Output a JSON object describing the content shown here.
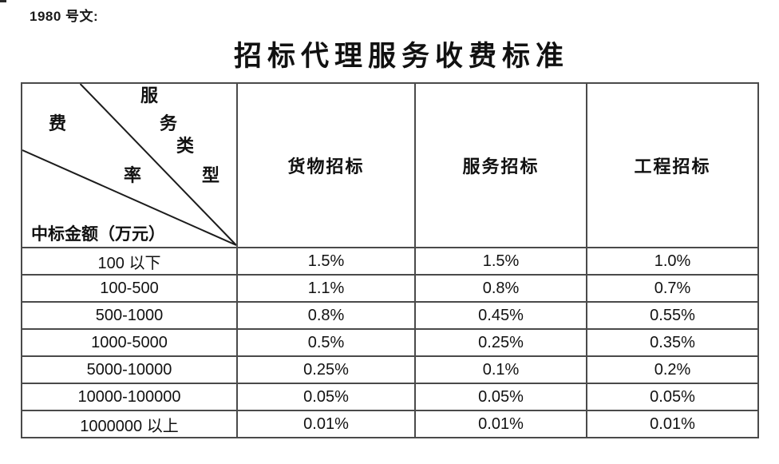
{
  "page": {
    "doc_label": "1980 号文:",
    "title": "招标代理服务收费标准"
  },
  "table": {
    "diagonal": {
      "fee_char": "费",
      "rate_char": "率",
      "service_char_1": "服",
      "service_char_2": "务",
      "service_char_3": "类",
      "service_char_4": "型",
      "bottom_label": "中标金额（万元）"
    },
    "columns": [
      "货物招标",
      "服务招标",
      "工程招标"
    ],
    "rows": [
      [
        "100 以下",
        "1.5%",
        "1.5%",
        "1.0%"
      ],
      [
        "100-500",
        "1.1%",
        "0.8%",
        "0.7%"
      ],
      [
        "500-1000",
        "0.8%",
        "0.45%",
        "0.55%"
      ],
      [
        "1000-5000",
        "0.5%",
        "0.25%",
        "0.35%"
      ],
      [
        "5000-10000",
        "0.25%",
        "0.1%",
        "0.2%"
      ],
      [
        "10000-100000",
        "0.05%",
        "0.05%",
        "0.05%"
      ],
      [
        "1000000 以上",
        "0.01%",
        "0.01%",
        "0.01%"
      ]
    ],
    "colors": {
      "border": "#4a4a4a",
      "text": "#111111",
      "background": "#ffffff"
    }
  }
}
